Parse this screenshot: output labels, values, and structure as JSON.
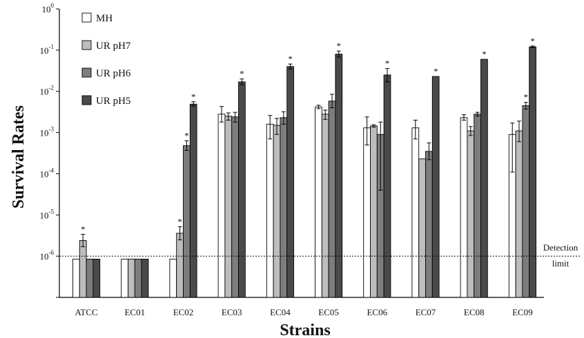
{
  "chart_data": {
    "type": "bar",
    "xlabel": "Strains",
    "ylabel": "Survival Rates",
    "log_scale": true,
    "ylim": [
      1e-07,
      1
    ],
    "y_tick_exponents": [
      0,
      -1,
      -2,
      -3,
      -4,
      -5,
      -6
    ],
    "categories": [
      "ATCC",
      "EC01",
      "EC02",
      "EC03",
      "EC04",
      "EC05",
      "EC06",
      "EC07",
      "EC08",
      "EC09"
    ],
    "series": [
      {
        "name": "MH",
        "color": "#ffffff",
        "values": [
          8.5e-07,
          8.5e-07,
          8.5e-07,
          0.0028,
          0.0016,
          0.0042,
          0.0013,
          0.0013,
          0.0023,
          0.0009
        ],
        "err_low": [
          null,
          null,
          null,
          0.0018,
          0.0007,
          0.0038,
          0.0005,
          0.0007,
          0.002,
          0.00011
        ],
        "err_high": [
          null,
          null,
          null,
          0.0043,
          0.0026,
          0.0046,
          0.0024,
          0.002,
          0.0027,
          0.0017
        ],
        "significant": [
          false,
          false,
          false,
          false,
          false,
          false,
          false,
          false,
          false,
          false
        ]
      },
      {
        "name": "UR pH7",
        "color": "#bdbdbd",
        "values": [
          2.4e-06,
          8.5e-07,
          3.6e-06,
          0.0025,
          0.0015,
          0.0028,
          0.00145,
          0.00023,
          0.0011,
          0.0011
        ],
        "err_low": [
          1.7e-06,
          null,
          2.5e-06,
          0.002,
          0.0009,
          0.0021,
          0.00135,
          null,
          0.00085,
          0.0006
        ],
        "err_high": [
          3.4e-06,
          null,
          5.2e-06,
          0.003,
          0.0022,
          0.0035,
          0.00155,
          null,
          0.0014,
          0.0019
        ],
        "significant": [
          true,
          false,
          true,
          false,
          false,
          false,
          false,
          false,
          false,
          false
        ]
      },
      {
        "name": "UR pH6",
        "color": "#7d7d7d",
        "values": [
          8.5e-07,
          8.5e-07,
          0.00048,
          0.0024,
          0.0023,
          0.0058,
          0.0009,
          0.00035,
          0.0028,
          0.0045
        ],
        "err_low": [
          null,
          null,
          0.00037,
          0.0018,
          0.0016,
          0.004,
          4e-05,
          0.00022,
          0.0025,
          0.0037
        ],
        "err_high": [
          null,
          null,
          0.00063,
          0.0031,
          0.0032,
          0.0085,
          0.0018,
          0.00056,
          0.0031,
          0.0054
        ],
        "significant": [
          false,
          false,
          true,
          false,
          false,
          false,
          false,
          false,
          false,
          true
        ]
      },
      {
        "name": "UR pH5",
        "color": "#4a4a4a",
        "values": [
          8.5e-07,
          8.5e-07,
          0.0049,
          0.017,
          0.04,
          0.08,
          0.025,
          0.023,
          0.06,
          0.12
        ],
        "err_low": [
          null,
          null,
          0.0044,
          0.0145,
          0.035,
          0.068,
          0.017,
          null,
          null,
          0.115
        ],
        "err_high": [
          null,
          null,
          0.0056,
          0.02,
          0.046,
          0.095,
          0.036,
          null,
          null,
          0.126
        ],
        "significant": [
          false,
          false,
          true,
          true,
          true,
          true,
          true,
          true,
          true,
          true
        ]
      }
    ],
    "detection_limit": {
      "value": 1e-06,
      "label_line1": "Detection",
      "label_line2": "limit",
      "style": "dotted"
    },
    "significance_marker": "*",
    "legend_position": "top-left",
    "grid": false
  }
}
